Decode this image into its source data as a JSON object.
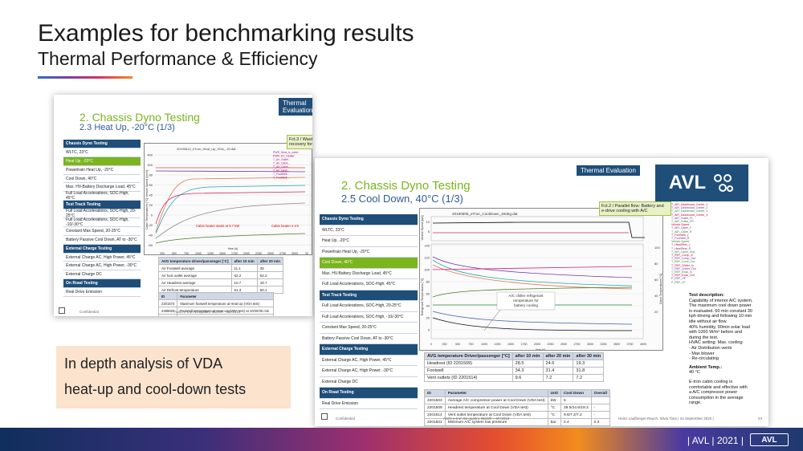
{
  "header": {
    "title": "Examples for benchmarking results",
    "subtitle": "Thermal Performance & Efficiency"
  },
  "slide1": {
    "h1": "2. Chassis Dyno Testing",
    "h2": "2.3 Heat Up, -20°C (1/3)",
    "tag": "Thermal Evaluation",
    "logo": "AVL",
    "menu": [
      {
        "label": "Chassis Dyno Testing",
        "kind": "hd"
      },
      {
        "label": "WLTC, 23°C",
        "kind": ""
      },
      {
        "label": "Heat Up, -20°C",
        "kind": "sel"
      },
      {
        "label": "Powertrain Heat Up, -20°C",
        "kind": ""
      },
      {
        "label": "Cool Down, 40°C",
        "kind": ""
      },
      {
        "label": "Max. HV-Battery Discharge Load, 45°C",
        "kind": ""
      },
      {
        "label": "Full Load Accelerations, SOC-High, 45°C",
        "kind": ""
      },
      {
        "label": "Test Track Testing",
        "kind": "hd"
      },
      {
        "label": "Full Load Accelerations, SOC-High, 20-25°C",
        "kind": ""
      },
      {
        "label": "Full Load Accelerations, SOC-High, -10/-30°C",
        "kind": ""
      },
      {
        "label": "Constant Max Speed, 20-25°C",
        "kind": ""
      },
      {
        "label": "Battery Passive Cool Down, AT to -30°C",
        "kind": ""
      },
      {
        "label": "External Charge Testing",
        "kind": "hd"
      },
      {
        "label": "External Charge AC, High Power, 45°C",
        "kind": ""
      },
      {
        "label": "External Charge AC, High Power, -30°C",
        "kind": ""
      },
      {
        "label": "External Charge DC",
        "kind": ""
      },
      {
        "label": "On Road Testing",
        "kind": "hd"
      },
      {
        "label": "Real Drive Emission",
        "kind": ""
      }
    ],
    "plot_title": "20190612_eTron_Heat_Up_VDA_-20.dat",
    "ylabel": "Cabin Temperatures [°C] Vehicle Speed [km/h]",
    "xlabel": "time [s]",
    "note": "Fct.3 / Wasted heat recovery for cabin heating",
    "annotation": "Cabin heater starts at 9.7 kW",
    "annotation2": "Cabin heater 2.4 k",
    "x_ticks": [
      "250",
      "500",
      "750",
      "1000",
      "1250",
      "1500",
      "1750",
      "2000",
      "2250",
      "2500",
      "2750",
      "3000",
      "32"
    ],
    "y_ticks": [
      "400",
      "100",
      "80",
      "60",
      "40",
      "20",
      "0",
      "-20",
      "-40",
      "-60"
    ],
    "legend": [
      "PWR_Heat_Ic_cabin",
      "PWR_HV_Heater",
      "T_Air_Outlet...",
      "T_Air_Cabin...",
      "T_Air_Cabin...",
      "T_Air_Dash...",
      "T_FootWell...",
      "T_FootWell..."
    ],
    "avg_table": {
      "headers": [
        "AVG temperature driver/passenger [°C]",
        "after 10 min",
        "after 20 min"
      ],
      "rows": [
        [
          "Air Footwell average",
          "11.1",
          "25"
        ],
        [
          "Air foot outlet average",
          "62.2",
          "62.2"
        ],
        [
          "Air Headrest average",
          "10.7",
          "18.7"
        ],
        [
          "Air Defrost temperature",
          "51.3",
          "50.1"
        ]
      ]
    },
    "param_table": {
      "headers": [
        "ID",
        "Parameter"
      ],
      "rows": [
        [
          "2201573",
          "Maximum footwell temperature at Heat Up (VDA test)"
        ],
        [
          "2488629",
          "Footwell temperature at Heat Up (VDA test) at 10/20/30 min"
        ],
        [
          "2201569",
          "Headrest temperature at Heat Up (VDA test) at 10/20/30 min"
        ]
      ]
    },
    "confidential": "Confidential",
    "footer": "AUDI e-tron 55 quattro 95kWh – MY2019"
  },
  "slide2": {
    "h1": "2. Chassis Dyno Testing",
    "h2": "2.5 Cool Down, 40°C (1/3)",
    "tag": "Thermal Evaluation",
    "logo": "AVL",
    "menu": [
      {
        "label": "Chassis Dyno Testing",
        "kind": "hd"
      },
      {
        "label": "WLTC, 23°C",
        "kind": ""
      },
      {
        "label": "Heat Up, -20°C",
        "kind": ""
      },
      {
        "label": "Powertrain Heat Up, -20°C",
        "kind": ""
      },
      {
        "label": "Cool Down, 40°C",
        "kind": "sel"
      },
      {
        "label": "Max. HV-Battery Discharge Load, 45°C",
        "kind": ""
      },
      {
        "label": "Full Load Accelerations, SOC-High, 45°C",
        "kind": ""
      },
      {
        "label": "Test Track Testing",
        "kind": "hd"
      },
      {
        "label": "Full Load Accelerations, SOC-High, 20-25°C",
        "kind": ""
      },
      {
        "label": "Full Load Accelerations, SOC-High, -10/-30°C",
        "kind": ""
      },
      {
        "label": "Constant Max Speed, 20-25°C",
        "kind": ""
      },
      {
        "label": "Battery Passive Cool Down, AT to -30°C",
        "kind": ""
      },
      {
        "label": "External Charge Testing",
        "kind": "hd"
      },
      {
        "label": "External Charge AC, High Power, 45°C",
        "kind": ""
      },
      {
        "label": "External Charge AC, High Power, -30°C",
        "kind": ""
      },
      {
        "label": "External Charge DC",
        "kind": ""
      },
      {
        "label": "On Road Testing",
        "kind": "hd"
      },
      {
        "label": "Real Drive Emission",
        "kind": ""
      }
    ],
    "plot_title": "20190606_eTron_CoolDown_40deg.dat",
    "note": "Fct.2 / Parallel flow: Battery and e-drive cooling with A/C",
    "annotation": "A/C chiller refrigerant temperature for battery cooling",
    "xlabel": "time [s]",
    "ylabel_top": "Vehicle Speed [kph]",
    "ylabel_mid": "PWR ACP [kW]",
    "ylabel_bot": "Refrigerant Temperatures [°C]",
    "ylabel_right": "Cabin Temperatures [°C]",
    "ylabel_soc": "SOC [%]",
    "x_ticks": [
      "0",
      "250",
      "500",
      "750",
      "1000",
      "1250",
      "1500",
      "1750",
      "2000",
      "2250",
      "2500",
      "2750",
      "3000",
      "3250",
      "3500",
      "3750",
      "4000"
    ],
    "y_left_top": [
      "140",
      "120",
      "100",
      "80",
      "60",
      "40",
      "20",
      "0"
    ],
    "y_left_mid": [
      "10",
      "5"
    ],
    "y_right": [
      "100",
      "80",
      "60",
      "40",
      "20"
    ],
    "legend": [
      "T_AIR_Dashboard_Center_1",
      "T_AIR_Dashboard_Center_2",
      "T_AIR_Dashboard_Center_3",
      "T_AIR_Dashboard_Center_4",
      "T_AIR_Outlet_FL",
      "T_AIR_Outlet_FR",
      "Vehicle Speed",
      "T_AIR_Cabin_F",
      "T_AIR_Cabin_R",
      "T_FootWell_L",
      "T_FootWell_R",
      "Vehicle Speed",
      "T_HeadRest_L",
      "T_HeadRest_R",
      "T_AIR_Cabin_Avg",
      "T_REF_Comp_In",
      "T_REF_Comp_Out",
      "T_REF_Cond_Out",
      "T_REF_Chiller_In",
      "T_REF_Chiller_Out",
      "T_REF_Evap_In",
      "T_REF_Evap_Out",
      "P_REF_HP",
      "P_REF_LP"
    ],
    "avg_table": {
      "headers": [
        "AVG temperature Driver/passenger [°C]",
        "after 10 min",
        "after 20 min",
        "after 30 min"
      ],
      "rows": [
        [
          "Headrest (ID 2201509)",
          "28.5",
          "24.6",
          "19.3"
        ],
        [
          "Footwell",
          "34.3",
          "31.4",
          "31.8"
        ],
        [
          "Vent outlets (ID 2201514)",
          "9.6",
          "7.2",
          "7.2"
        ]
      ]
    },
    "param_table": {
      "headers": [
        "ID",
        "Parameter",
        "Unit",
        "Cool Down",
        "Overall"
      ],
      "rows": [
        [
          "2201503",
          "Average A/C compressor power at Cool Down (VDA test)",
          "kW",
          "6",
          ""
        ],
        [
          "2201509",
          "Headrest temperature at Cool Down (VDA test)",
          "°C",
          "28.5/24.6/19.3",
          "-"
        ],
        [
          "2201514",
          "Vent outlet temperature at Cool Down (VDA test)",
          "°C",
          "9.6/7.2/7.2",
          "-"
        ],
        [
          "2201501",
          "Minimum A/C system low pressure",
          "bar",
          "2.4",
          "2.3"
        ]
      ]
    },
    "test_desc_title": "Test description:",
    "test_desc": [
      "Capability of interior A/C system.",
      "The maximum cool down power",
      "is evaluated. 60 min constant 30",
      "kph driving and following 10 min",
      "idle without air flow.",
      "40% humidity, 90min solar load",
      "with 1000 W/m² before and",
      "during the test.",
      "HVAC setting: Max. cooling",
      "- Air Distribution vents",
      "- Max blower",
      "- Re-circulating"
    ],
    "ambient_title": "Ambient Temp.:",
    "ambient_value": "40 °C",
    "summary": [
      "E-tron cabin cooling is",
      "comfortable and effective with",
      "a A/C compressor power",
      "consumption in the average",
      "range."
    ],
    "confidential": "Confidential",
    "footer": "AUDI e-tron 55 quattro 95kWh – MY2019",
    "author": "Heinz Laufberger-Rauch, Silvia Tiani | 24 September 2020 |",
    "page": "24"
  },
  "callout": {
    "line1": "In depth analysis of VDA",
    "line2": "heat-up and cool-down tests"
  },
  "footer": {
    "text": "| AVL | 2021 |",
    "logo": "AVL"
  },
  "colors": {
    "avl_blue": "#1f4e79",
    "accent_green": "#7ab51d",
    "heading_blue": "#2d5a9a",
    "callout_bg": "#fbe3cd"
  },
  "icons": {
    "avl_logo": "avl-molecule-icon"
  }
}
